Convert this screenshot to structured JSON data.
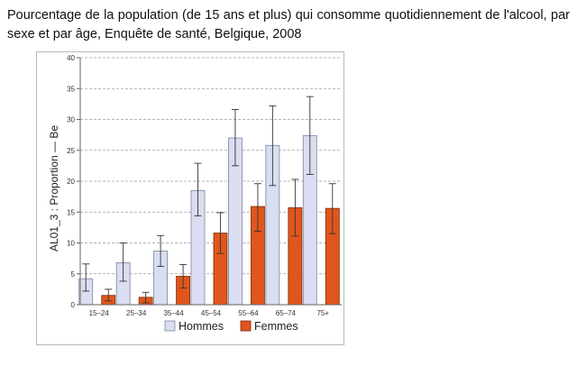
{
  "caption": "Pourcentage de la population (de 15 ans et plus) qui consomme quotidiennement de l'alcool, par sexe et par âge, Enquête de santé, Belgique, 2008",
  "chart_data": {
    "type": "bar",
    "title": "Pourcentage de la population (de 15 ans et plus) qui consomme quotidiennement de l'alcool, par sexe et par âge, Enquête de santé, Belgique, 2008",
    "xlabel": "",
    "ylabel": "AL01_3 : Proportion — Be",
    "ylim": [
      0,
      40
    ],
    "yticks": [
      0,
      5,
      10,
      15,
      20,
      25,
      30,
      35,
      40
    ],
    "grid": true,
    "legend_position": "bottom",
    "categories": [
      "15–24",
      "25–34",
      "35–44",
      "45–54",
      "55–64",
      "65–74",
      "75+"
    ],
    "series": [
      {
        "name": "Hommes",
        "color": "#d9def0",
        "values": [
          4.2,
          6.8,
          8.7,
          18.5,
          27.0,
          25.8,
          27.4
        ],
        "ci_low": [
          2.2,
          3.8,
          6.2,
          14.4,
          22.5,
          19.3,
          21.1
        ],
        "ci_high": [
          6.6,
          10.0,
          11.2,
          22.9,
          31.6,
          32.2,
          33.7
        ]
      },
      {
        "name": "Femmes",
        "color": "#e0561c",
        "values": [
          1.5,
          1.2,
          4.6,
          11.6,
          15.9,
          15.7,
          15.6
        ],
        "ci_low": [
          0.6,
          0.3,
          2.7,
          8.3,
          11.9,
          11.1,
          11.5
        ],
        "ci_high": [
          2.5,
          2.0,
          6.5,
          14.9,
          19.6,
          20.3,
          19.6
        ]
      }
    ]
  }
}
